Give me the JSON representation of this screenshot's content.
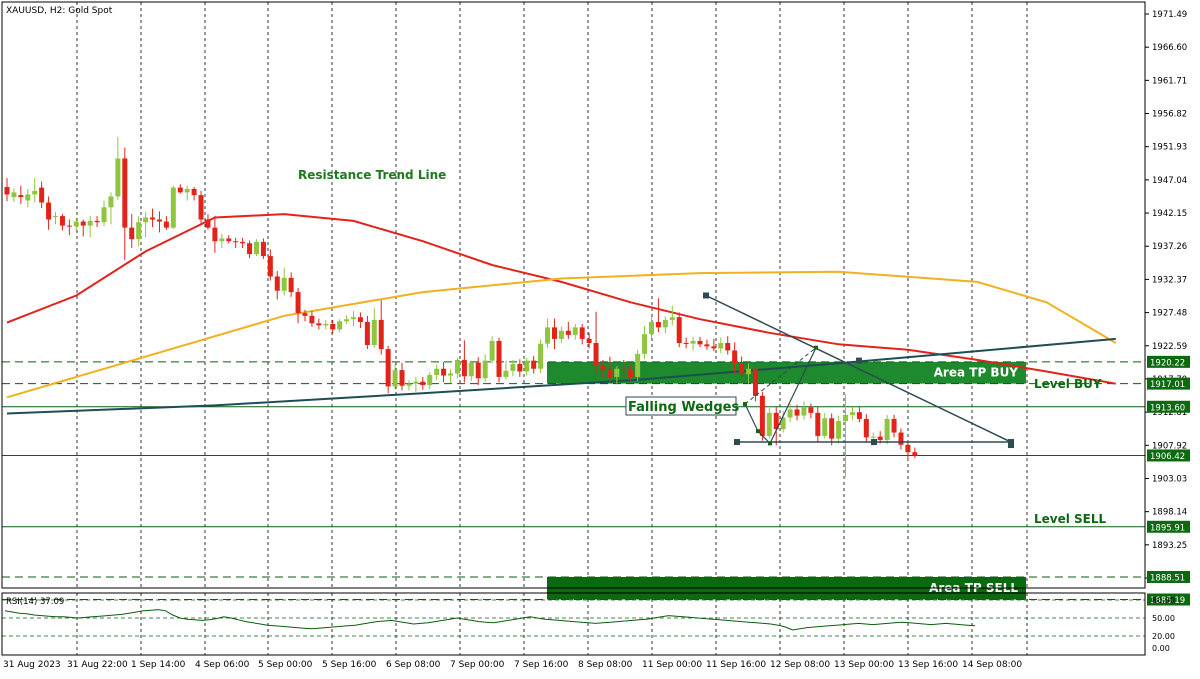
{
  "chart_data": {
    "type": "candlestick",
    "symbol_header": "XAUUSD, H2:  Gold Spot",
    "y_axis": {
      "ticks": [
        "1971.49",
        "1966.60",
        "1961.71",
        "1956.82",
        "1951.93",
        "1947.04",
        "1942.15",
        "1937.26",
        "1932.37",
        "1927.48",
        "1922.59",
        "1917.70",
        "1912.81",
        "1907.92",
        "1903.03",
        "1898.14",
        "1893.25",
        "1888.36"
      ],
      "range": [
        1883,
        1973
      ]
    },
    "x_axis": {
      "ticks": [
        "31 Aug 2023",
        "31 Aug 22:00",
        "1 Sep 14:00",
        "4 Sep 06:00",
        "5 Sep 00:00",
        "5 Sep 16:00",
        "6 Sep 08:00",
        "7 Sep 00:00",
        "7 Sep 16:00",
        "8 Sep 08:00",
        "11 Sep 00:00",
        "11 Sep 16:00",
        "12 Sep 08:00",
        "13 Sep 00:00",
        "13 Sep 16:00",
        "14 Sep 08:00"
      ]
    },
    "candles": [
      {
        "o": 1946.0,
        "h": 1947.3,
        "l": 1943.9,
        "c": 1944.9
      },
      {
        "o": 1944.5,
        "h": 1945.8,
        "l": 1943.8,
        "c": 1945.2
      },
      {
        "o": 1944.8,
        "h": 1946.2,
        "l": 1943.5,
        "c": 1944.5
      },
      {
        "o": 1944.0,
        "h": 1945.7,
        "l": 1943.0,
        "c": 1944.9
      },
      {
        "o": 1944.9,
        "h": 1947.3,
        "l": 1943.7,
        "c": 1945.4
      },
      {
        "o": 1945.9,
        "h": 1946.8,
        "l": 1942.9,
        "c": 1943.7
      },
      {
        "o": 1943.7,
        "h": 1944.6,
        "l": 1939.7,
        "c": 1941.2
      },
      {
        "o": 1941.7,
        "h": 1942.3,
        "l": 1940.5,
        "c": 1941.7
      },
      {
        "o": 1941.7,
        "h": 1942.0,
        "l": 1939.6,
        "c": 1940.3
      },
      {
        "o": 1940.3,
        "h": 1941.2,
        "l": 1938.9,
        "c": 1940.2
      },
      {
        "o": 1940.2,
        "h": 1941.4,
        "l": 1939.4,
        "c": 1940.9
      },
      {
        "o": 1940.9,
        "h": 1941.2,
        "l": 1938.7,
        "c": 1940.3
      },
      {
        "o": 1940.3,
        "h": 1941.7,
        "l": 1938.6,
        "c": 1941.0
      },
      {
        "o": 1941.0,
        "h": 1941.7,
        "l": 1940.1,
        "c": 1940.8
      },
      {
        "o": 1940.8,
        "h": 1944.0,
        "l": 1940.2,
        "c": 1943.0
      },
      {
        "o": 1943.0,
        "h": 1945.2,
        "l": 1940.5,
        "c": 1944.6
      },
      {
        "o": 1944.6,
        "h": 1953.4,
        "l": 1944.1,
        "c": 1950.2
      },
      {
        "o": 1950.2,
        "h": 1951.8,
        "l": 1935.2,
        "c": 1940.0
      },
      {
        "o": 1940.0,
        "h": 1942.0,
        "l": 1937.0,
        "c": 1938.3
      },
      {
        "o": 1938.3,
        "h": 1941.7,
        "l": 1937.2,
        "c": 1940.8
      },
      {
        "o": 1940.8,
        "h": 1942.3,
        "l": 1938.6,
        "c": 1941.5
      },
      {
        "o": 1941.5,
        "h": 1942.8,
        "l": 1940.1,
        "c": 1941.2
      },
      {
        "o": 1941.2,
        "h": 1942.4,
        "l": 1939.3,
        "c": 1940.9
      },
      {
        "o": 1940.9,
        "h": 1941.7,
        "l": 1939.7,
        "c": 1940.0
      },
      {
        "o": 1940.0,
        "h": 1946.2,
        "l": 1939.8,
        "c": 1945.9
      },
      {
        "o": 1945.9,
        "h": 1946.4,
        "l": 1945.0,
        "c": 1945.2
      },
      {
        "o": 1945.2,
        "h": 1946.2,
        "l": 1944.0,
        "c": 1945.7
      },
      {
        "o": 1945.7,
        "h": 1946.0,
        "l": 1944.0,
        "c": 1944.8
      },
      {
        "o": 1944.8,
        "h": 1945.4,
        "l": 1940.5,
        "c": 1941.2
      },
      {
        "o": 1941.2,
        "h": 1942.0,
        "l": 1939.7,
        "c": 1940.0
      },
      {
        "o": 1940.0,
        "h": 1941.7,
        "l": 1936.3,
        "c": 1938.0
      },
      {
        "o": 1938.0,
        "h": 1939.1,
        "l": 1937.0,
        "c": 1938.4
      },
      {
        "o": 1938.4,
        "h": 1938.9,
        "l": 1937.7,
        "c": 1938.0
      },
      {
        "o": 1938.0,
        "h": 1938.5,
        "l": 1937.0,
        "c": 1937.9
      },
      {
        "o": 1937.9,
        "h": 1938.5,
        "l": 1937.0,
        "c": 1937.7
      },
      {
        "o": 1937.7,
        "h": 1938.1,
        "l": 1935.5,
        "c": 1936.1
      },
      {
        "o": 1936.1,
        "h": 1938.3,
        "l": 1935.8,
        "c": 1937.9
      },
      {
        "o": 1937.9,
        "h": 1938.4,
        "l": 1935.4,
        "c": 1935.8
      },
      {
        "o": 1935.8,
        "h": 1936.8,
        "l": 1932.2,
        "c": 1932.8
      },
      {
        "o": 1932.8,
        "h": 1933.6,
        "l": 1929.4,
        "c": 1930.7
      },
      {
        "o": 1930.7,
        "h": 1934.1,
        "l": 1930.0,
        "c": 1932.6
      },
      {
        "o": 1932.6,
        "h": 1933.4,
        "l": 1929.8,
        "c": 1930.5
      },
      {
        "o": 1930.5,
        "h": 1931.1,
        "l": 1925.9,
        "c": 1927.4
      },
      {
        "o": 1927.4,
        "h": 1927.9,
        "l": 1926.2,
        "c": 1927.0
      },
      {
        "o": 1927.0,
        "h": 1927.7,
        "l": 1925.4,
        "c": 1925.9
      },
      {
        "o": 1925.9,
        "h": 1926.6,
        "l": 1925.0,
        "c": 1925.6
      },
      {
        "o": 1925.6,
        "h": 1926.4,
        "l": 1925.0,
        "c": 1925.8
      },
      {
        "o": 1925.8,
        "h": 1926.4,
        "l": 1924.4,
        "c": 1925.0
      },
      {
        "o": 1925.0,
        "h": 1926.5,
        "l": 1924.6,
        "c": 1926.2
      },
      {
        "o": 1926.2,
        "h": 1927.1,
        "l": 1925.8,
        "c": 1926.5
      },
      {
        "o": 1926.5,
        "h": 1927.7,
        "l": 1925.5,
        "c": 1926.8
      },
      {
        "o": 1926.8,
        "h": 1927.5,
        "l": 1925.2,
        "c": 1926.1
      },
      {
        "o": 1926.1,
        "h": 1927.0,
        "l": 1922.1,
        "c": 1922.7
      },
      {
        "o": 1922.7,
        "h": 1928.1,
        "l": 1922.3,
        "c": 1926.4
      },
      {
        "o": 1926.4,
        "h": 1929.3,
        "l": 1921.3,
        "c": 1922.1
      },
      {
        "o": 1922.1,
        "h": 1922.6,
        "l": 1915.6,
        "c": 1916.6
      },
      {
        "o": 1916.6,
        "h": 1919.9,
        "l": 1916.2,
        "c": 1919.0
      },
      {
        "o": 1919.0,
        "h": 1920.1,
        "l": 1916.0,
        "c": 1916.7
      },
      {
        "o": 1916.7,
        "h": 1917.5,
        "l": 1916.0,
        "c": 1917.0
      },
      {
        "o": 1917.0,
        "h": 1918.0,
        "l": 1915.8,
        "c": 1917.3
      },
      {
        "o": 1917.3,
        "h": 1918.0,
        "l": 1916.1,
        "c": 1916.8
      },
      {
        "o": 1916.8,
        "h": 1918.7,
        "l": 1916.2,
        "c": 1918.3
      },
      {
        "o": 1918.3,
        "h": 1919.8,
        "l": 1917.5,
        "c": 1919.2
      },
      {
        "o": 1919.2,
        "h": 1920.2,
        "l": 1917.2,
        "c": 1918.2
      },
      {
        "o": 1918.2,
        "h": 1919.1,
        "l": 1917.1,
        "c": 1918.5
      },
      {
        "o": 1918.5,
        "h": 1920.8,
        "l": 1917.8,
        "c": 1920.5
      },
      {
        "o": 1920.5,
        "h": 1923.4,
        "l": 1917.2,
        "c": 1918.1
      },
      {
        "o": 1918.1,
        "h": 1920.4,
        "l": 1917.4,
        "c": 1920.1
      },
      {
        "o": 1920.1,
        "h": 1920.9,
        "l": 1916.8,
        "c": 1917.8
      },
      {
        "o": 1917.8,
        "h": 1921.3,
        "l": 1917.2,
        "c": 1920.4
      },
      {
        "o": 1920.4,
        "h": 1924.0,
        "l": 1920.0,
        "c": 1923.3
      },
      {
        "o": 1923.3,
        "h": 1923.8,
        "l": 1917.2,
        "c": 1918.0
      },
      {
        "o": 1918.0,
        "h": 1920.4,
        "l": 1917.6,
        "c": 1918.9
      },
      {
        "o": 1918.9,
        "h": 1920.5,
        "l": 1918.1,
        "c": 1919.9
      },
      {
        "o": 1919.9,
        "h": 1920.6,
        "l": 1918.0,
        "c": 1918.8
      },
      {
        "o": 1918.8,
        "h": 1920.8,
        "l": 1918.2,
        "c": 1920.4
      },
      {
        "o": 1920.4,
        "h": 1921.1,
        "l": 1918.5,
        "c": 1919.2
      },
      {
        "o": 1919.2,
        "h": 1923.5,
        "l": 1918.6,
        "c": 1922.9
      },
      {
        "o": 1922.9,
        "h": 1926.6,
        "l": 1922.3,
        "c": 1925.3
      },
      {
        "o": 1925.3,
        "h": 1926.6,
        "l": 1922.1,
        "c": 1923.6
      },
      {
        "o": 1923.6,
        "h": 1925.4,
        "l": 1923.0,
        "c": 1924.8
      },
      {
        "o": 1924.8,
        "h": 1926.1,
        "l": 1923.6,
        "c": 1924.2
      },
      {
        "o": 1924.2,
        "h": 1925.8,
        "l": 1923.5,
        "c": 1925.3
      },
      {
        "o": 1925.3,
        "h": 1925.8,
        "l": 1922.8,
        "c": 1923.6
      },
      {
        "o": 1923.6,
        "h": 1924.5,
        "l": 1922.2,
        "c": 1923.0
      },
      {
        "o": 1923.0,
        "h": 1927.6,
        "l": 1918.6,
        "c": 1919.7
      },
      {
        "o": 1919.7,
        "h": 1920.5,
        "l": 1917.8,
        "c": 1919.0
      },
      {
        "o": 1919.0,
        "h": 1921.0,
        "l": 1917.2,
        "c": 1918.0
      },
      {
        "o": 1918.0,
        "h": 1919.6,
        "l": 1917.0,
        "c": 1919.2
      },
      {
        "o": 1919.2,
        "h": 1920.5,
        "l": 1918.0,
        "c": 1919.0
      },
      {
        "o": 1919.0,
        "h": 1919.8,
        "l": 1917.4,
        "c": 1918.0
      },
      {
        "o": 1918.0,
        "h": 1922.0,
        "l": 1917.4,
        "c": 1921.4
      },
      {
        "o": 1921.4,
        "h": 1925.5,
        "l": 1920.6,
        "c": 1924.3
      },
      {
        "o": 1924.3,
        "h": 1927.0,
        "l": 1923.7,
        "c": 1926.1
      },
      {
        "o": 1926.1,
        "h": 1929.6,
        "l": 1924.6,
        "c": 1925.3
      },
      {
        "o": 1925.3,
        "h": 1926.9,
        "l": 1924.4,
        "c": 1926.4
      },
      {
        "o": 1926.4,
        "h": 1928.5,
        "l": 1925.6,
        "c": 1926.8
      },
      {
        "o": 1926.8,
        "h": 1927.5,
        "l": 1922.4,
        "c": 1923.0
      },
      {
        "o": 1923.0,
        "h": 1923.8,
        "l": 1922.2,
        "c": 1922.9
      },
      {
        "o": 1922.9,
        "h": 1923.9,
        "l": 1921.9,
        "c": 1923.3
      },
      {
        "o": 1923.3,
        "h": 1923.9,
        "l": 1922.4,
        "c": 1922.8
      },
      {
        "o": 1922.8,
        "h": 1923.5,
        "l": 1922.0,
        "c": 1922.5
      },
      {
        "o": 1922.5,
        "h": 1923.6,
        "l": 1921.8,
        "c": 1922.2
      },
      {
        "o": 1922.2,
        "h": 1923.8,
        "l": 1921.5,
        "c": 1923.0
      },
      {
        "o": 1923.0,
        "h": 1924.0,
        "l": 1921.3,
        "c": 1921.9
      },
      {
        "o": 1921.9,
        "h": 1923.1,
        "l": 1918.5,
        "c": 1920.0
      },
      {
        "o": 1920.0,
        "h": 1921.0,
        "l": 1917.8,
        "c": 1918.4
      },
      {
        "o": 1918.4,
        "h": 1920.0,
        "l": 1917.0,
        "c": 1919.2
      },
      {
        "o": 1919.2,
        "h": 1919.8,
        "l": 1914.4,
        "c": 1915.2
      },
      {
        "o": 1915.2,
        "h": 1915.8,
        "l": 1908.6,
        "c": 1909.3
      },
      {
        "o": 1909.3,
        "h": 1913.4,
        "l": 1908.9,
        "c": 1912.7
      },
      {
        "o": 1912.7,
        "h": 1913.6,
        "l": 1907.9,
        "c": 1910.3
      },
      {
        "o": 1910.3,
        "h": 1913.0,
        "l": 1909.8,
        "c": 1912.0
      },
      {
        "o": 1912.0,
        "h": 1914.0,
        "l": 1911.3,
        "c": 1913.2
      },
      {
        "o": 1913.2,
        "h": 1913.9,
        "l": 1911.6,
        "c": 1912.3
      },
      {
        "o": 1912.3,
        "h": 1914.4,
        "l": 1911.7,
        "c": 1913.5
      },
      {
        "o": 1913.5,
        "h": 1914.1,
        "l": 1911.9,
        "c": 1912.7
      },
      {
        "o": 1912.7,
        "h": 1913.6,
        "l": 1908.4,
        "c": 1909.3
      },
      {
        "o": 1909.3,
        "h": 1912.7,
        "l": 1908.9,
        "c": 1911.9
      },
      {
        "o": 1911.9,
        "h": 1912.6,
        "l": 1907.9,
        "c": 1908.9
      },
      {
        "o": 1908.9,
        "h": 1912.3,
        "l": 1908.2,
        "c": 1911.5
      },
      {
        "o": 1911.5,
        "h": 1915.4,
        "l": 1903.2,
        "c": 1912.4
      },
      {
        "o": 1912.4,
        "h": 1913.5,
        "l": 1911.7,
        "c": 1912.8
      },
      {
        "o": 1912.8,
        "h": 1913.6,
        "l": 1911.3,
        "c": 1911.8
      },
      {
        "o": 1911.8,
        "h": 1912.5,
        "l": 1908.4,
        "c": 1909.1
      },
      {
        "o": 1909.1,
        "h": 1909.8,
        "l": 1907.9,
        "c": 1909.2
      },
      {
        "o": 1909.2,
        "h": 1910.0,
        "l": 1908.2,
        "c": 1908.7
      },
      {
        "o": 1908.7,
        "h": 1912.4,
        "l": 1908.1,
        "c": 1911.8
      },
      {
        "o": 1911.8,
        "h": 1912.4,
        "l": 1909.1,
        "c": 1909.8
      },
      {
        "o": 1909.8,
        "h": 1910.4,
        "l": 1907.3,
        "c": 1908.0
      },
      {
        "o": 1908.0,
        "h": 1908.6,
        "l": 1905.7,
        "c": 1906.9
      },
      {
        "o": 1906.9,
        "h": 1907.6,
        "l": 1906.0,
        "c": 1906.42
      }
    ],
    "moving_averages": [
      {
        "color": "#e2231a",
        "points": [
          [
            0,
            1926.0
          ],
          [
            10,
            1930.0
          ],
          [
            20,
            1936.5
          ],
          [
            30,
            1941.5
          ],
          [
            40,
            1942.0
          ],
          [
            50,
            1941.0
          ],
          [
            60,
            1938.0
          ],
          [
            70,
            1934.5
          ],
          [
            80,
            1932.0
          ],
          [
            90,
            1929.0
          ],
          [
            100,
            1926.5
          ],
          [
            110,
            1924.5
          ],
          [
            120,
            1922.8
          ],
          [
            130,
            1922.0
          ],
          [
            140,
            1920.5
          ],
          [
            150,
            1918.8
          ],
          [
            160,
            1917.0
          ]
        ]
      },
      {
        "color": "#f2b01e",
        "points": [
          [
            0,
            1915.0
          ],
          [
            20,
            1921.0
          ],
          [
            40,
            1927.0
          ],
          [
            60,
            1930.5
          ],
          [
            80,
            1932.5
          ],
          [
            100,
            1933.3
          ],
          [
            120,
            1933.5
          ],
          [
            140,
            1932.0
          ],
          [
            150,
            1929.0
          ],
          [
            160,
            1923.0
          ]
        ]
      },
      {
        "color": "#1e4e52",
        "points": [
          [
            0,
            1912.6
          ],
          [
            30,
            1913.8
          ],
          [
            60,
            1915.6
          ],
          [
            90,
            1917.5
          ],
          [
            120,
            1920.0
          ],
          [
            150,
            1922.7
          ],
          [
            160,
            1923.6
          ]
        ]
      }
    ],
    "levels": [
      {
        "price": 1920.22,
        "label": "1920.22",
        "style": "dash"
      },
      {
        "price": 1917.01,
        "label": "1917.01",
        "style": "dash"
      },
      {
        "price": 1913.6,
        "label": "1913.60",
        "style": "solid"
      },
      {
        "price": 1906.42,
        "label": "1906.42",
        "style": "solid"
      },
      {
        "price": 1895.91,
        "label": "1895.91",
        "style": "solid"
      },
      {
        "price": 1888.51,
        "label": "1888.51",
        "style": "dash"
      },
      {
        "price": 1885.19,
        "label": "1885.19",
        "style": "dash"
      }
    ],
    "zones": [
      {
        "label": "Area TP BUY",
        "top": 1920.22,
        "bottom": 1917.01,
        "color": "#1e8a2e"
      },
      {
        "label": "Area TP SELL",
        "top": 1888.51,
        "bottom": 1885.19,
        "color": "#0b6a10"
      }
    ],
    "annotations": {
      "resistance_label": "Resistance Trend Line",
      "level_buy": "Level BUY",
      "level_sell": "Level SELL",
      "falling_wedges": "Falling Wedges"
    },
    "rsi": {
      "label": "RSI(14) 37.09",
      "ticks": [
        "80.00",
        "50.00",
        "20.00",
        "0.00"
      ],
      "levels": [
        80,
        50,
        20
      ],
      "values": [
        62,
        60,
        58,
        57,
        55,
        54,
        53,
        52,
        52,
        51,
        50,
        51,
        52,
        53,
        54,
        55,
        56,
        58,
        60,
        62,
        63,
        64,
        62,
        55,
        50,
        48,
        47,
        46,
        47,
        49,
        52,
        50,
        47,
        44,
        42,
        40,
        38,
        37,
        36,
        35,
        34,
        33,
        32,
        33,
        34,
        35,
        36,
        37,
        38,
        40,
        42,
        44,
        45,
        46,
        44,
        42,
        40,
        41,
        42,
        44,
        46,
        48,
        50,
        48,
        46,
        44,
        43,
        42,
        44,
        46,
        48,
        50,
        52,
        50,
        48,
        47,
        46,
        45,
        44,
        43,
        42,
        41,
        42,
        43,
        44,
        45,
        46,
        47,
        48,
        50,
        52,
        54,
        53,
        52,
        51,
        50,
        49,
        48,
        47,
        46,
        45,
        44,
        43,
        42,
        41,
        40,
        38,
        35,
        30,
        32,
        34,
        35,
        36,
        37,
        38,
        39,
        40,
        41,
        40,
        39,
        40,
        41,
        42,
        43,
        42,
        41,
        40,
        39,
        40,
        41,
        40,
        39,
        38,
        37
      ]
    }
  }
}
